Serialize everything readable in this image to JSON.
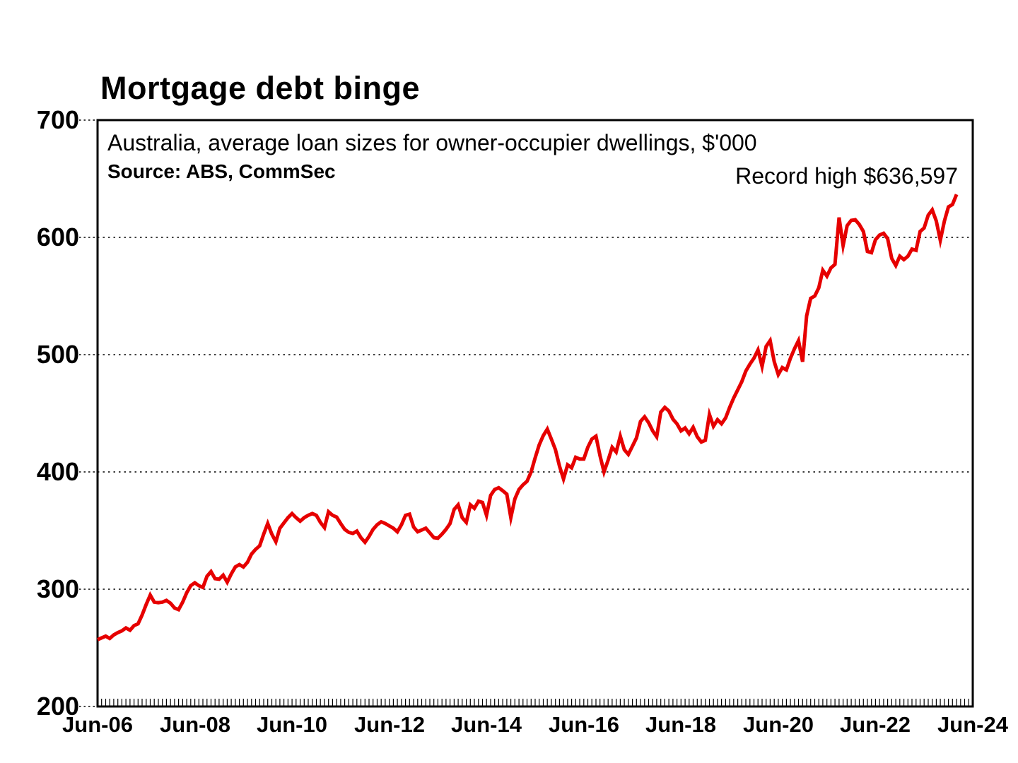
{
  "chart_data": {
    "type": "line",
    "title": "Mortgage debt binge",
    "subtitle": "Australia, average loan sizes for owner-occupier dwellings, $'000",
    "source": "Source: ABS, CommSec",
    "annotation": "Record high $636,597",
    "series_name": "Average loan size for owner-occupier dwellings ($'000)",
    "line_color": "#e60000",
    "line_width": 5,
    "grid_color": "#000000",
    "ylim": [
      200,
      700
    ],
    "y_ticks": [
      200,
      300,
      400,
      500,
      600,
      700
    ],
    "gridline_values": [
      300,
      400,
      500,
      600
    ],
    "x_domain_months": [
      0,
      216
    ],
    "minor_tick_every_months": 1,
    "x_tick_labels": [
      "Jun-06",
      "Jun-08",
      "Jun-10",
      "Jun-12",
      "Jun-14",
      "Jun-16",
      "Jun-18",
      "Jun-20",
      "Jun-22",
      "Jun-24"
    ],
    "x_tick_months": [
      0,
      24,
      48,
      72,
      96,
      120,
      144,
      168,
      192,
      216
    ],
    "x_start_month_label": "Jun-06",
    "record_high_display": "$636,597",
    "monthly_values_from_jun_2006": [
      257,
      258.5,
      260,
      258,
      261,
      263,
      264.5,
      267,
      265,
      269,
      270.5,
      278,
      287,
      295,
      289,
      288.5,
      289,
      290.5,
      288,
      284,
      282.5,
      289,
      297,
      303,
      305.5,
      303,
      301.5,
      311,
      315,
      309,
      308.5,
      312,
      306,
      313,
      319,
      321,
      319,
      323,
      330,
      334,
      337,
      347,
      356,
      347,
      340.5,
      352,
      356.5,
      361,
      364.5,
      361,
      358,
      361,
      363,
      364.5,
      363,
      357,
      352.5,
      366,
      363,
      361.5,
      356,
      351,
      348.5,
      347.5,
      349.5,
      344,
      340,
      345,
      351,
      355,
      357.5,
      356,
      354,
      352,
      349,
      355,
      363,
      364,
      353,
      349,
      350.5,
      352,
      348,
      344,
      343.5,
      347,
      351,
      356,
      368,
      372,
      361,
      357,
      372,
      369,
      375,
      374,
      363,
      380,
      385,
      386.5,
      384,
      381,
      361,
      377,
      385,
      389,
      392,
      400,
      412,
      423,
      431,
      436.5,
      428,
      419,
      405,
      394,
      406,
      403.5,
      412.5,
      411,
      411,
      421,
      428,
      430.5,
      414,
      400,
      410,
      421,
      417,
      430.5,
      419,
      415,
      422,
      429,
      443,
      447,
      442,
      435,
      430,
      451,
      455,
      452,
      445,
      441,
      435,
      437.5,
      432.5,
      438,
      430,
      425.5,
      427,
      449,
      439,
      444.5,
      441,
      446,
      455,
      463,
      470,
      477,
      486,
      492,
      497,
      504,
      490,
      507,
      512,
      494,
      483,
      489,
      487,
      497,
      505,
      512,
      494,
      533,
      548,
      550,
      557,
      572,
      567,
      574,
      577,
      617,
      593,
      610,
      614.5,
      615,
      611,
      605,
      588,
      587,
      598,
      602,
      603.5,
      599,
      582,
      576,
      584,
      581,
      584,
      590,
      589,
      605,
      608,
      619,
      623.5,
      614,
      597.5,
      614,
      626,
      628,
      636.6
    ]
  }
}
